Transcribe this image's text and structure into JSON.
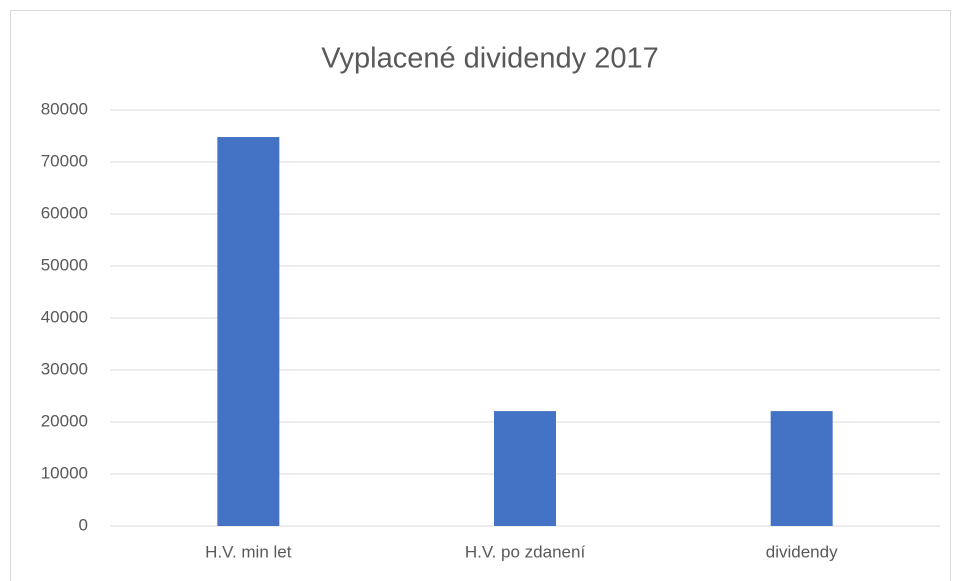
{
  "chart_data": {
    "type": "bar",
    "title": "Vyplacené dividendy 2017",
    "categories": [
      "H.V. min let",
      "H.V. po zdanení",
      "dividendy"
    ],
    "values": [
      74800,
      22100,
      22100
    ],
    "color": "#4472c4",
    "ylim": [
      0,
      80000
    ],
    "yticks": [
      0,
      10000,
      20000,
      30000,
      40000,
      50000,
      60000,
      70000,
      80000
    ],
    "grid": true
  }
}
